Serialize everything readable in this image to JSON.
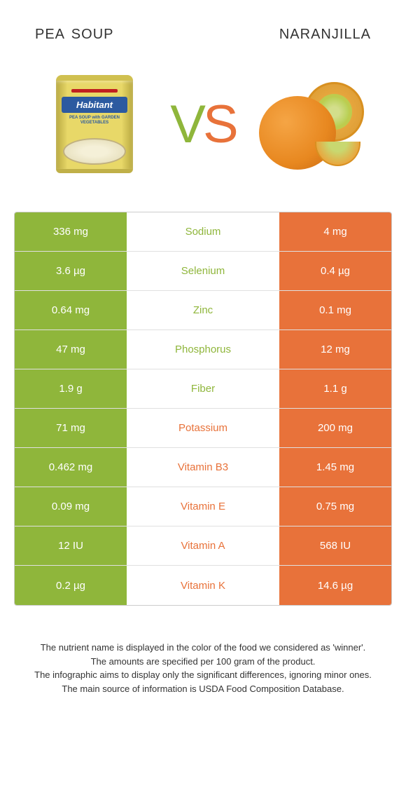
{
  "colors": {
    "green": "#8fb63b",
    "orange": "#e8723a",
    "text": "#333333",
    "white": "#ffffff",
    "border": "#e0e0e0"
  },
  "title_left": "pea soup",
  "title_right": "naranjilla",
  "vs": {
    "v": "V",
    "s": "S"
  },
  "can": {
    "brand": "Habitant",
    "sub": "PEA SOUP with GARDEN VEGETABLES"
  },
  "rows": [
    {
      "left": "336 mg",
      "label": "Sodium",
      "right": "4 mg",
      "winner": "green"
    },
    {
      "left": "3.6 µg",
      "label": "Selenium",
      "right": "0.4 µg",
      "winner": "green"
    },
    {
      "left": "0.64 mg",
      "label": "Zinc",
      "right": "0.1 mg",
      "winner": "green"
    },
    {
      "left": "47 mg",
      "label": "Phosphorus",
      "right": "12 mg",
      "winner": "green"
    },
    {
      "left": "1.9 g",
      "label": "Fiber",
      "right": "1.1 g",
      "winner": "green"
    },
    {
      "left": "71 mg",
      "label": "Potassium",
      "right": "200 mg",
      "winner": "orange"
    },
    {
      "left": "0.462 mg",
      "label": "Vitamin B3",
      "right": "1.45 mg",
      "winner": "orange"
    },
    {
      "left": "0.09 mg",
      "label": "Vitamin E",
      "right": "0.75 mg",
      "winner": "orange"
    },
    {
      "left": "12 IU",
      "label": "Vitamin A",
      "right": "568 IU",
      "winner": "orange"
    },
    {
      "left": "0.2 µg",
      "label": "Vitamin K",
      "right": "14.6 µg",
      "winner": "orange"
    }
  ],
  "footer": {
    "l1": "The nutrient name is displayed in the color of the food we considered as 'winner'.",
    "l2": "The amounts are specified per 100 gram of the product.",
    "l3": "The infographic aims to display only the significant differences, ignoring minor ones.",
    "l4": "The main source of information is USDA Food Composition Database."
  }
}
